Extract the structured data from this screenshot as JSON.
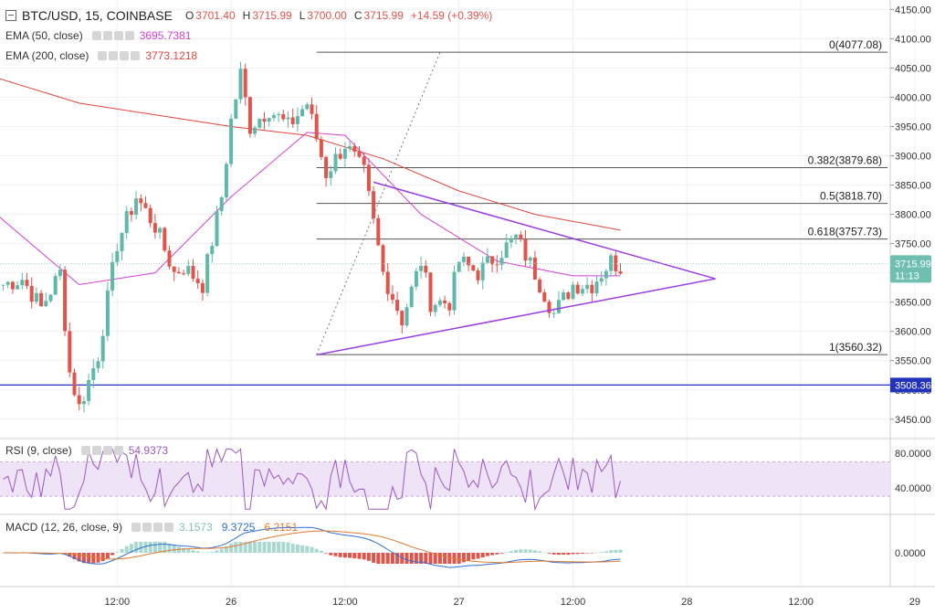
{
  "header": {
    "symbol": "BTC/USD, 15, COINBASE",
    "open_label": "O",
    "open": "3701.40",
    "high_label": "H",
    "high": "3715.99",
    "low_label": "L",
    "low": "3700.00",
    "close_label": "C",
    "close": "3715.99",
    "change": "+14.59 (+0.39%)"
  },
  "indicators": {
    "ema50": {
      "label": "EMA (50, close)",
      "value": "3695.7381",
      "color": "#d63fd6"
    },
    "ema200": {
      "label": "EMA (200, close)",
      "value": "3773.1218",
      "color": "#e0443c"
    },
    "rsi": {
      "label": "RSI (9, close)",
      "value": "54.9373",
      "color": "#9c58c4"
    },
    "macd": {
      "label": "MACD (12, 26, close, 9)",
      "hist": "3.1573",
      "macd": "9.3725",
      "signal": "6.2151",
      "hist_color": "#7fc4b8",
      "macd_color": "#2f6fd6",
      "signal_color": "#e07b30"
    }
  },
  "colors": {
    "up": "#5fb8a9",
    "down": "#e0544c",
    "fib": "#555555",
    "triangle": "#9b3de0",
    "support": "#2233bb"
  },
  "price_axis": {
    "ticks": [
      "4150.00",
      "4100.00",
      "4050.00",
      "4000.00",
      "3950.00",
      "3900.00",
      "3850.00",
      "3800.00",
      "3750.00",
      "3700.00",
      "3650.00",
      "3600.00",
      "3550.00",
      "3500.00",
      "3450.00"
    ],
    "current_price": "3715.99",
    "countdown": "11:13",
    "support_price": "3508.36"
  },
  "rsi_axis": {
    "ticks": [
      "80.0000",
      "40.0000"
    ]
  },
  "macd_axis": {
    "ticks": [
      "0.0000"
    ]
  },
  "time_axis": {
    "labels": [
      "12:00",
      "26",
      "12:00",
      "27",
      "12:00",
      "28",
      "12:00",
      "29"
    ]
  },
  "fib_levels": [
    {
      "label": "0(4077.08)",
      "price": 4077.08
    },
    {
      "label": "0.382(3879.68)",
      "price": 3879.68
    },
    {
      "label": "0.5(3818.70)",
      "price": 3818.7
    },
    {
      "label": "0.618(3757.73)",
      "price": 3757.73
    },
    {
      "label": "1(3560.32)",
      "price": 3560.32
    }
  ],
  "chart_data": {
    "type": "candlestick",
    "title": "BTC/USD, 15, COINBASE",
    "ylim": [
      3420,
      4160
    ],
    "support_level": 3508.36,
    "fib_retracement": [
      4077.08,
      3879.68,
      3818.7,
      3757.73,
      3560.32
    ],
    "triangle": {
      "upper": [
        [
          "26 15:00",
          3855
        ],
        [
          "27 17:00",
          3750
        ]
      ],
      "lower": [
        [
          "26 09:00",
          3560
        ],
        [
          "27 17:00",
          3660
        ]
      ],
      "apex": [
        "28 03:00",
        3690
      ]
    },
    "anchors": [
      [
        "25 00:00",
        3680
      ],
      [
        "25 02:00",
        3690
      ],
      [
        "25 04:00",
        3640
      ],
      [
        "25 06:00",
        3700
      ],
      [
        "25 07:00",
        3530
      ],
      [
        "25 08:00",
        3470
      ],
      [
        "25 10:00",
        3560
      ],
      [
        "25 12:00",
        3750
      ],
      [
        "25 14:00",
        3830
      ],
      [
        "25 16:00",
        3780
      ],
      [
        "25 18:00",
        3700
      ],
      [
        "25 19:00",
        3710
      ],
      [
        "25 21:00",
        3680
      ],
      [
        "25 23:00",
        3830
      ],
      [
        "26 00:00",
        3960
      ],
      [
        "26 01:00",
        4040
      ],
      [
        "26 02:00",
        3950
      ],
      [
        "26 04:00",
        3980
      ],
      [
        "26 06:00",
        3950
      ],
      [
        "26 08:00",
        3990
      ],
      [
        "26 09:00",
        3930
      ],
      [
        "26 10:00",
        3870
      ],
      [
        "26 12:00",
        3920
      ],
      [
        "26 14:00",
        3870
      ],
      [
        "26 16:00",
        3700
      ],
      [
        "26 18:00",
        3620
      ],
      [
        "26 20:00",
        3720
      ],
      [
        "26 21:00",
        3650
      ],
      [
        "26 23:00",
        3650
      ],
      [
        "27 00:00",
        3720
      ],
      [
        "27 02:00",
        3700
      ],
      [
        "27 04:00",
        3730
      ],
      [
        "27 06:00",
        3760
      ],
      [
        "27 08:00",
        3700
      ],
      [
        "27 10:00",
        3630
      ],
      [
        "27 12:00",
        3680
      ],
      [
        "27 14:00",
        3680
      ],
      [
        "27 16:00",
        3720
      ],
      [
        "27 17:00",
        3710
      ]
    ],
    "ema50": [
      [
        "24 20:00",
        3850
      ],
      [
        "25 00:00",
        3790
      ],
      [
        "25 08:00",
        3680
      ],
      [
        "25 16:00",
        3700
      ],
      [
        "26 00:00",
        3830
      ],
      [
        "26 08:00",
        3940
      ],
      [
        "26 12:00",
        3935
      ],
      [
        "26 20:00",
        3800
      ],
      [
        "27 04:00",
        3720
      ],
      [
        "27 12:00",
        3695
      ],
      [
        "27 17:00",
        3695
      ]
    ],
    "ema200": [
      [
        "24 20:00",
        4050
      ],
      [
        "25 08:00",
        3990
      ],
      [
        "26 00:00",
        3950
      ],
      [
        "26 08:00",
        3935
      ],
      [
        "26 16:00",
        3895
      ],
      [
        "27 00:00",
        3840
      ],
      [
        "27 08:00",
        3800
      ],
      [
        "27 17:00",
        3773
      ]
    ],
    "rsi": {
      "ylim": [
        10,
        95
      ],
      "band": [
        70,
        30
      ],
      "last": 54.9373
    },
    "macd": {
      "last_hist": 3.1573,
      "last_macd": 9.3725,
      "last_signal": 6.2151
    }
  }
}
